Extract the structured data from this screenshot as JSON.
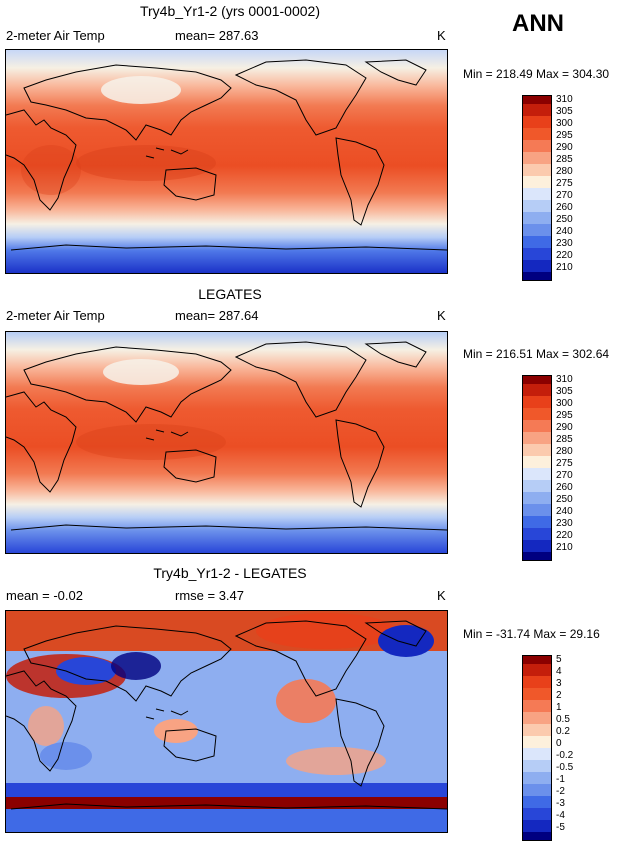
{
  "season_label": "ANN",
  "panels": [
    {
      "title": "Try4b_Yr1-2 (yrs 0001-0002)",
      "left_label": "2-meter Air Temp",
      "mid_label": "mean= 287.63",
      "units": "K",
      "min_max": "Min = 218.49 Max = 304.30"
    },
    {
      "title": "LEGATES",
      "left_label": "2-meter Air Temp",
      "mid_label": "mean= 287.64",
      "units": "K",
      "min_max": "Min = 216.51 Max = 302.64"
    },
    {
      "title": "Try4b_Yr1-2 - LEGATES",
      "left_label": "mean =   -0.02",
      "mid_label": "rmse =    3.47",
      "units": "K",
      "min_max": "Min = -31.74 Max =  29.16"
    }
  ],
  "temp_scale": {
    "labels": [
      "310",
      "305",
      "300",
      "295",
      "290",
      "285",
      "280",
      "275",
      "270",
      "260",
      "250",
      "240",
      "230",
      "220",
      "210"
    ],
    "colors": [
      "#8b0000",
      "#c41e0b",
      "#e8401a",
      "#f0582a",
      "#f57a55",
      "#f8a383",
      "#fbcaae",
      "#fdf0dc",
      "#dbe6fb",
      "#b6cdf6",
      "#8eaef0",
      "#6b90eb",
      "#3f6ae6",
      "#2846d8",
      "#1428c0",
      "#000080"
    ]
  },
  "diff_scale": {
    "labels": [
      "5",
      "4",
      "3",
      "2",
      "1",
      "0.5",
      "0.2",
      "0",
      "-0.2",
      "-0.5",
      "-1",
      "-2",
      "-3",
      "-4",
      "-5"
    ],
    "colors": [
      "#8b0000",
      "#c41e0b",
      "#e8401a",
      "#f0582a",
      "#f57a55",
      "#f8a383",
      "#fbcaae",
      "#fdf0dc",
      "#dbe6fb",
      "#b6cdf6",
      "#8eaef0",
      "#6b90eb",
      "#3f6ae6",
      "#2846d8",
      "#1428c0",
      "#000080"
    ]
  }
}
